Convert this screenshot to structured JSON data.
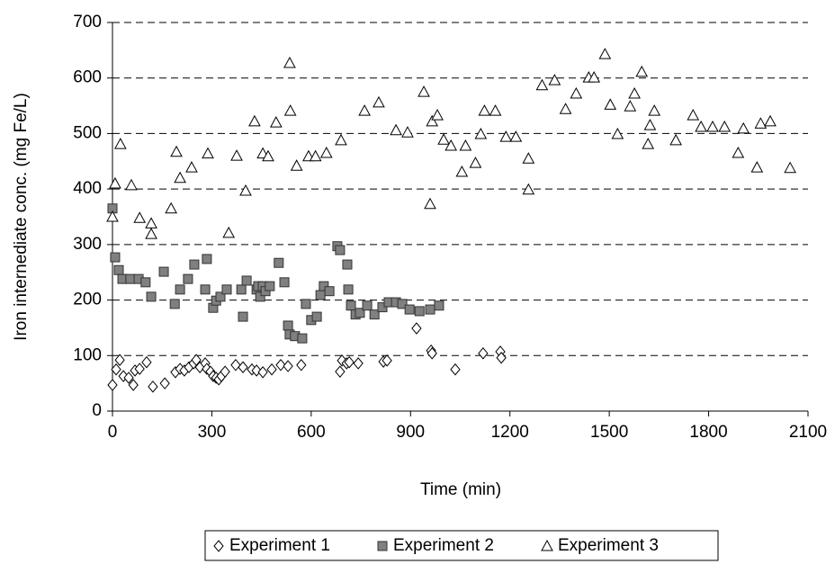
{
  "chart_data": {
    "type": "scatter",
    "x_label": "Time (min)",
    "y_label": "Iron internediate conc. (mg Fe/L)",
    "xlim": [
      0,
      2100
    ],
    "xticks": [
      0,
      300,
      600,
      900,
      1200,
      1500,
      1800,
      2100
    ],
    "ylim": [
      0,
      700
    ],
    "yticks": [
      0,
      100,
      200,
      300,
      400,
      500,
      600,
      700
    ],
    "grid": true,
    "legend": "bottom",
    "series": [
      {
        "name": "Experiment 1",
        "marker": "diamond",
        "color": "#000000",
        "fill": "#ffffff",
        "x": [
          0,
          11,
          22,
          33,
          49,
          63,
          68,
          82,
          103,
          122,
          158,
          190,
          204,
          217,
          231,
          245,
          253,
          264,
          280,
          285,
          296,
          304,
          313,
          321,
          329,
          340,
          372,
          394,
          421,
          435,
          454,
          481,
          508,
          530,
          570,
          687,
          693,
          707,
          715,
          742,
          818,
          829,
          918,
          962,
          965,
          1035,
          1119,
          1171,
          1174
        ],
        "values": [
          47,
          75,
          92,
          63,
          60,
          47,
          73,
          76,
          88,
          44,
          50,
          70,
          76,
          73,
          79,
          86,
          92,
          79,
          86,
          76,
          71,
          63,
          60,
          57,
          63,
          71,
          83,
          79,
          75,
          73,
          70,
          75,
          83,
          81,
          83,
          71,
          91,
          86,
          88,
          86,
          89,
          91,
          149,
          109,
          104,
          75,
          104,
          107,
          96
        ]
      },
      {
        "name": "Experiment 2",
        "marker": "square",
        "color": "#333333",
        "fill": "#808080",
        "x": [
          0,
          8,
          19,
          30,
          54,
          79,
          100,
          117,
          155,
          188,
          204,
          228,
          247,
          280,
          285,
          304,
          313,
          326,
          345,
          389,
          394,
          405,
          435,
          440,
          446,
          454,
          462,
          475,
          502,
          519,
          530,
          535,
          551,
          573,
          584,
          600,
          617,
          628,
          638,
          655,
          679,
          687,
          709,
          712,
          720,
          734,
          747,
          769,
          791,
          815,
          834,
          856,
          875,
          897,
          927,
          959,
          986
        ],
        "values": [
          365,
          277,
          254,
          238,
          238,
          238,
          232,
          206,
          251,
          193,
          219,
          238,
          264,
          219,
          274,
          186,
          199,
          206,
          219,
          219,
          170,
          235,
          219,
          225,
          206,
          225,
          216,
          225,
          267,
          232,
          154,
          138,
          135,
          131,
          193,
          164,
          170,
          209,
          225,
          216,
          297,
          290,
          264,
          219,
          190,
          174,
          177,
          190,
          174,
          187,
          196,
          196,
          193,
          183,
          180,
          183,
          190
        ]
      },
      {
        "name": "Experiment 3",
        "marker": "triangle",
        "color": "#000000",
        "fill": "#ffffff",
        "x": [
          0,
          8,
          24,
          57,
          82,
          117,
          117,
          177,
          193,
          204,
          239,
          288,
          351,
          375,
          402,
          429,
          454,
          470,
          494,
          535,
          537,
          556,
          592,
          613,
          646,
          690,
          761,
          804,
          856,
          891,
          940,
          959,
          965,
          981,
          1000,
          1022,
          1055,
          1066,
          1096,
          1112,
          1123,
          1156,
          1188,
          1218,
          1256,
          1256,
          1297,
          1335,
          1368,
          1400,
          1438,
          1454,
          1487,
          1503,
          1525,
          1563,
          1576,
          1598,
          1617,
          1623,
          1636,
          1701,
          1753,
          1777,
          1812,
          1848,
          1889,
          1905,
          1946,
          1957,
          1986,
          2046
        ],
        "values": [
          350,
          410,
          481,
          407,
          348,
          338,
          319,
          365,
          467,
          420,
          439,
          464,
          321,
          460,
          397,
          522,
          464,
          459,
          520,
          627,
          541,
          442,
          459,
          459,
          465,
          488,
          541,
          556,
          506,
          502,
          575,
          373,
          522,
          533,
          489,
          478,
          431,
          478,
          447,
          499,
          541,
          541,
          494,
          494,
          399,
          455,
          587,
          596,
          544,
          572,
          601,
          601,
          643,
          552,
          499,
          549,
          572,
          611,
          481,
          515,
          541,
          488,
          533,
          512,
          512,
          512,
          465,
          509,
          439,
          518,
          522,
          438
        ]
      }
    ]
  }
}
